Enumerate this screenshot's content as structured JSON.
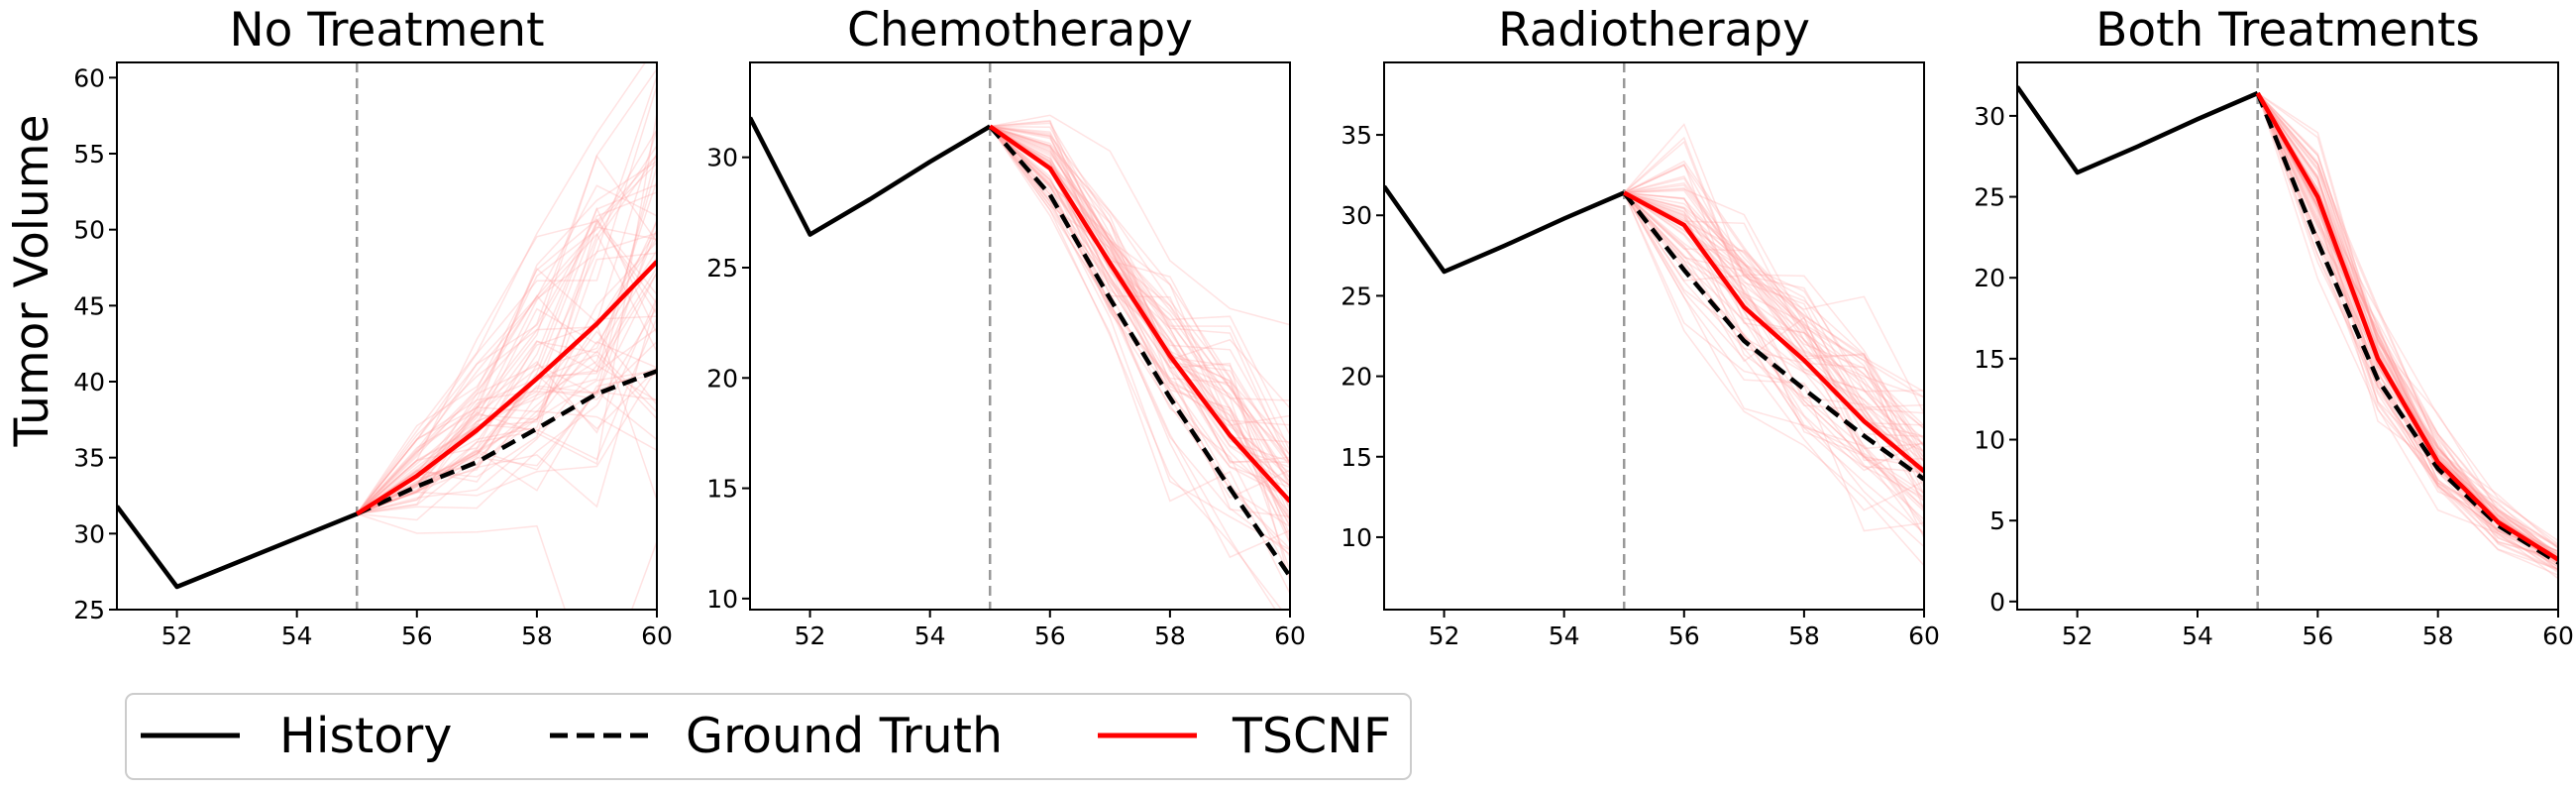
{
  "legend": {
    "items": [
      {
        "label": "History",
        "style": "solid",
        "color": "#000000"
      },
      {
        "label": "Ground Truth",
        "style": "dashed",
        "color": "#000000"
      },
      {
        "label": "TSCNF",
        "style": "solid",
        "color": "#ff0000"
      }
    ]
  },
  "ylabel": "Tumor Volume",
  "colors": {
    "history": "#000000",
    "ground_truth": "#000000",
    "tscnf": "#ff0000",
    "samples": "#ff9999",
    "divider": "#999999"
  },
  "chart_data": [
    {
      "type": "line",
      "title": "No Treatment",
      "xlim": [
        51,
        60
      ],
      "ylim": [
        25,
        61
      ],
      "xticks": [
        52,
        54,
        56,
        58,
        60
      ],
      "yticks": [
        25,
        30,
        35,
        40,
        45,
        50,
        55,
        60
      ],
      "divider_x": 55,
      "history": {
        "x": [
          51,
          52,
          53,
          54,
          55
        ],
        "y": [
          31.8,
          26.5,
          28.1,
          29.7,
          31.3
        ]
      },
      "ground_truth": {
        "x": [
          55,
          56,
          57,
          58,
          59,
          60
        ],
        "y": [
          31.3,
          33.1,
          34.7,
          36.9,
          39.2,
          40.7
        ]
      },
      "tscnf": {
        "x": [
          55,
          56,
          57,
          58,
          59,
          60
        ],
        "y": [
          31.3,
          33.8,
          36.8,
          40.2,
          43.8,
          47.9
        ]
      },
      "samples": {
        "spread": [
          0,
          1.6,
          3.2,
          5.0,
          7.0,
          9.0
        ],
        "count": 60
      }
    },
    {
      "type": "line",
      "title": "Chemotherapy",
      "xlim": [
        51,
        60
      ],
      "ylim": [
        9.5,
        34.3
      ],
      "xticks": [
        52,
        54,
        56,
        58,
        60
      ],
      "yticks": [
        10,
        15,
        20,
        25,
        30
      ],
      "divider_x": 55,
      "history": {
        "x": [
          51,
          52,
          53,
          54,
          55
        ],
        "y": [
          31.8,
          26.5,
          28.1,
          29.8,
          31.4
        ]
      },
      "ground_truth": {
        "x": [
          55,
          56,
          57,
          58,
          59,
          60
        ],
        "y": [
          31.4,
          28.3,
          23.6,
          19.1,
          15.0,
          11.0
        ]
      },
      "tscnf": {
        "x": [
          55,
          56,
          57,
          58,
          59,
          60
        ],
        "y": [
          31.4,
          29.5,
          25.2,
          21.0,
          17.4,
          14.4
        ]
      },
      "samples": {
        "spread": [
          0,
          1.2,
          1.8,
          2.2,
          2.5,
          2.7
        ],
        "count": 60
      }
    },
    {
      "type": "line",
      "title": "Radiotherapy",
      "xlim": [
        51,
        60
      ],
      "ylim": [
        5.5,
        39.5
      ],
      "xticks": [
        52,
        54,
        56,
        58,
        60
      ],
      "yticks": [
        10,
        15,
        20,
        25,
        30,
        35
      ],
      "divider_x": 55,
      "history": {
        "x": [
          51,
          52,
          53,
          54,
          55
        ],
        "y": [
          31.8,
          26.5,
          28.1,
          29.8,
          31.4
        ]
      },
      "ground_truth": {
        "x": [
          55,
          56,
          57,
          58,
          59,
          60
        ],
        "y": [
          31.4,
          26.6,
          22.2,
          19.2,
          16.3,
          13.6
        ]
      },
      "tscnf": {
        "x": [
          55,
          56,
          57,
          58,
          59,
          60
        ],
        "y": [
          31.4,
          29.4,
          24.3,
          21.0,
          17.2,
          14.1
        ]
      },
      "samples": {
        "spread": [
          0,
          3.0,
          3.3,
          3.2,
          3.0,
          2.8
        ],
        "count": 60
      }
    },
    {
      "type": "line",
      "title": "Both Treatments",
      "xlim": [
        51,
        60
      ],
      "ylim": [
        -0.5,
        33.3
      ],
      "xticks": [
        52,
        54,
        56,
        58,
        60
      ],
      "yticks": [
        0,
        5,
        10,
        15,
        20,
        25,
        30
      ],
      "divider_x": 55,
      "history": {
        "x": [
          51,
          52,
          53,
          54,
          55
        ],
        "y": [
          31.8,
          26.5,
          28.1,
          29.8,
          31.4
        ]
      },
      "ground_truth": {
        "x": [
          55,
          56,
          57,
          58,
          59,
          60
        ],
        "y": [
          31.4,
          22.2,
          13.7,
          8.2,
          4.7,
          2.4
        ]
      },
      "tscnf": {
        "x": [
          55,
          56,
          57,
          58,
          59,
          60
        ],
        "y": [
          31.4,
          25.0,
          15.0,
          8.6,
          4.9,
          2.6
        ]
      },
      "samples": {
        "spread": [
          0,
          2.2,
          2.0,
          1.4,
          0.9,
          0.6
        ],
        "count": 60
      }
    }
  ]
}
